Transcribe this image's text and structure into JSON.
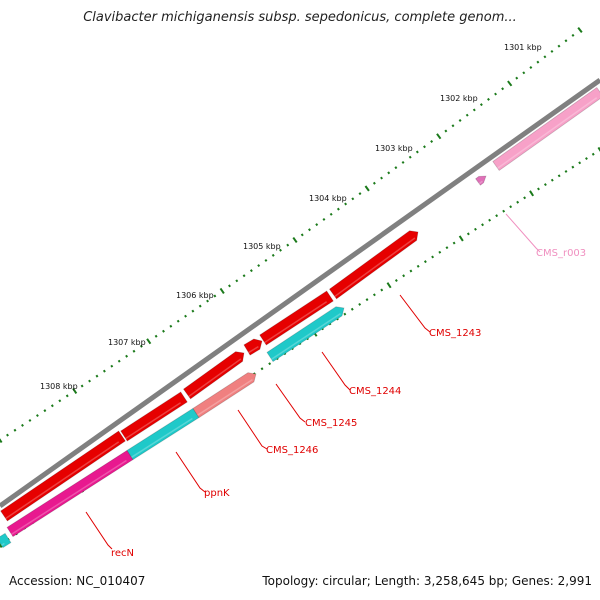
{
  "title": "Clavibacter michiganensis subsp. sepedonicus, complete genom...",
  "footer": {
    "accession": "Accession: NC_010407",
    "summary": "Topology: circular; Length: 3,258,645 bp; Genes: 2,991"
  },
  "ruler": [
    "1301 kbp",
    "1302 kbp",
    "1303 kbp",
    "1304 kbp",
    "1305 kbp",
    "1306 kbp",
    "1307 kbp",
    "1308 kbp"
  ],
  "genes": [
    {
      "id": "CMS_r003",
      "label": "CMS_r003",
      "color": "#f7a1c8"
    },
    {
      "id": "CMS_1243",
      "label": "CMS_1243",
      "color": "#e60000"
    },
    {
      "id": "CMS_1244",
      "label": "CMS_1244",
      "color": "#1fc9c9"
    },
    {
      "id": "CMS_1245",
      "label": "CMS_1245",
      "color": "#e60000"
    },
    {
      "id": "CMS_1246",
      "label": "CMS_1246",
      "color": "#f08080"
    },
    {
      "id": "ppnK",
      "label": "ppnK",
      "color": "#1fc9c9"
    },
    {
      "id": "recN",
      "label": "recN",
      "color": "#e8198f"
    }
  ],
  "colors": {
    "backbone": "#808080",
    "tick_major": "#1b7a1b",
    "tick_minor": "#1b7a1b",
    "label_red": "#e00000",
    "label_pink": "#f090c0"
  }
}
